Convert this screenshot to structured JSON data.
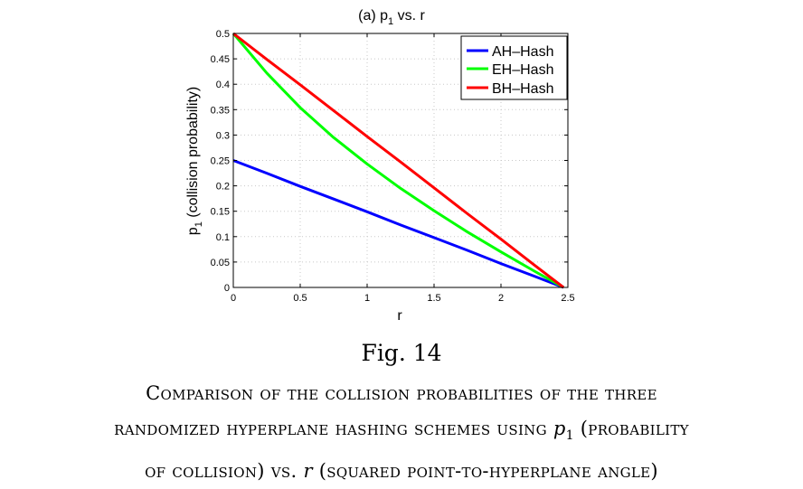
{
  "chart_data": {
    "type": "line",
    "title": "(a) p",
    "title_sub": "1",
    "title_rest": " vs. r",
    "xlabel": "r",
    "ylabel_p": "p",
    "ylabel_sub": "1",
    "ylabel_rest": " (collision probability)",
    "xlim": [
      0,
      2.5
    ],
    "ylim": [
      0,
      0.5
    ],
    "xticks": [
      0,
      0.5,
      1,
      1.5,
      2,
      2.5
    ],
    "xtick_labels": [
      "0",
      "0.5",
      "1",
      "1.5",
      "2",
      "2.5"
    ],
    "yticks": [
      0,
      0.05,
      0.1,
      0.15,
      0.2,
      0.25,
      0.3,
      0.35,
      0.4,
      0.45,
      0.5
    ],
    "ytick_labels": [
      "0",
      "0.05",
      "0.1",
      "0.15",
      "0.2",
      "0.25",
      "0.3",
      "0.35",
      "0.4",
      "0.45",
      "0.5"
    ],
    "grid": true,
    "legend_position": "top-right",
    "series": [
      {
        "name": "AH–Hash",
        "color": "#0000ff",
        "x": [
          0,
          0.25,
          0.5,
          0.75,
          1,
          1.25,
          1.5,
          1.75,
          2,
          2.25,
          2.4674
        ],
        "y": [
          0.25,
          0.225,
          0.199,
          0.174,
          0.149,
          0.123,
          0.098,
          0.073,
          0.047,
          0.022,
          0
        ]
      },
      {
        "name": "EH–Hash",
        "color": "#00ff00",
        "x": [
          0,
          0.25,
          0.5,
          0.75,
          1,
          1.25,
          1.5,
          1.75,
          2,
          2.25,
          2.4674
        ],
        "y": [
          0.5,
          0.422,
          0.354,
          0.295,
          0.243,
          0.195,
          0.151,
          0.109,
          0.07,
          0.032,
          0
        ]
      },
      {
        "name": "BH–Hash",
        "color": "#ff0000",
        "x": [
          0,
          0.25,
          0.5,
          0.75,
          1,
          1.25,
          1.5,
          1.75,
          2,
          2.25,
          2.4674
        ],
        "y": [
          0.5,
          0.449,
          0.399,
          0.348,
          0.297,
          0.247,
          0.196,
          0.145,
          0.095,
          0.044,
          0
        ]
      }
    ]
  },
  "figure_label": "Fig. 14",
  "caption_line1": "Comparison of the collision probabilities of the three",
  "caption_line2a": "randomized hyperplane hashing schemes using ",
  "caption_p": "p",
  "caption_sub": "1",
  "caption_line2b": " (probability",
  "caption_line3a": "of collision) vs. ",
  "caption_r": "r",
  "caption_line3b": " (squared point-to-hyperplane angle)"
}
